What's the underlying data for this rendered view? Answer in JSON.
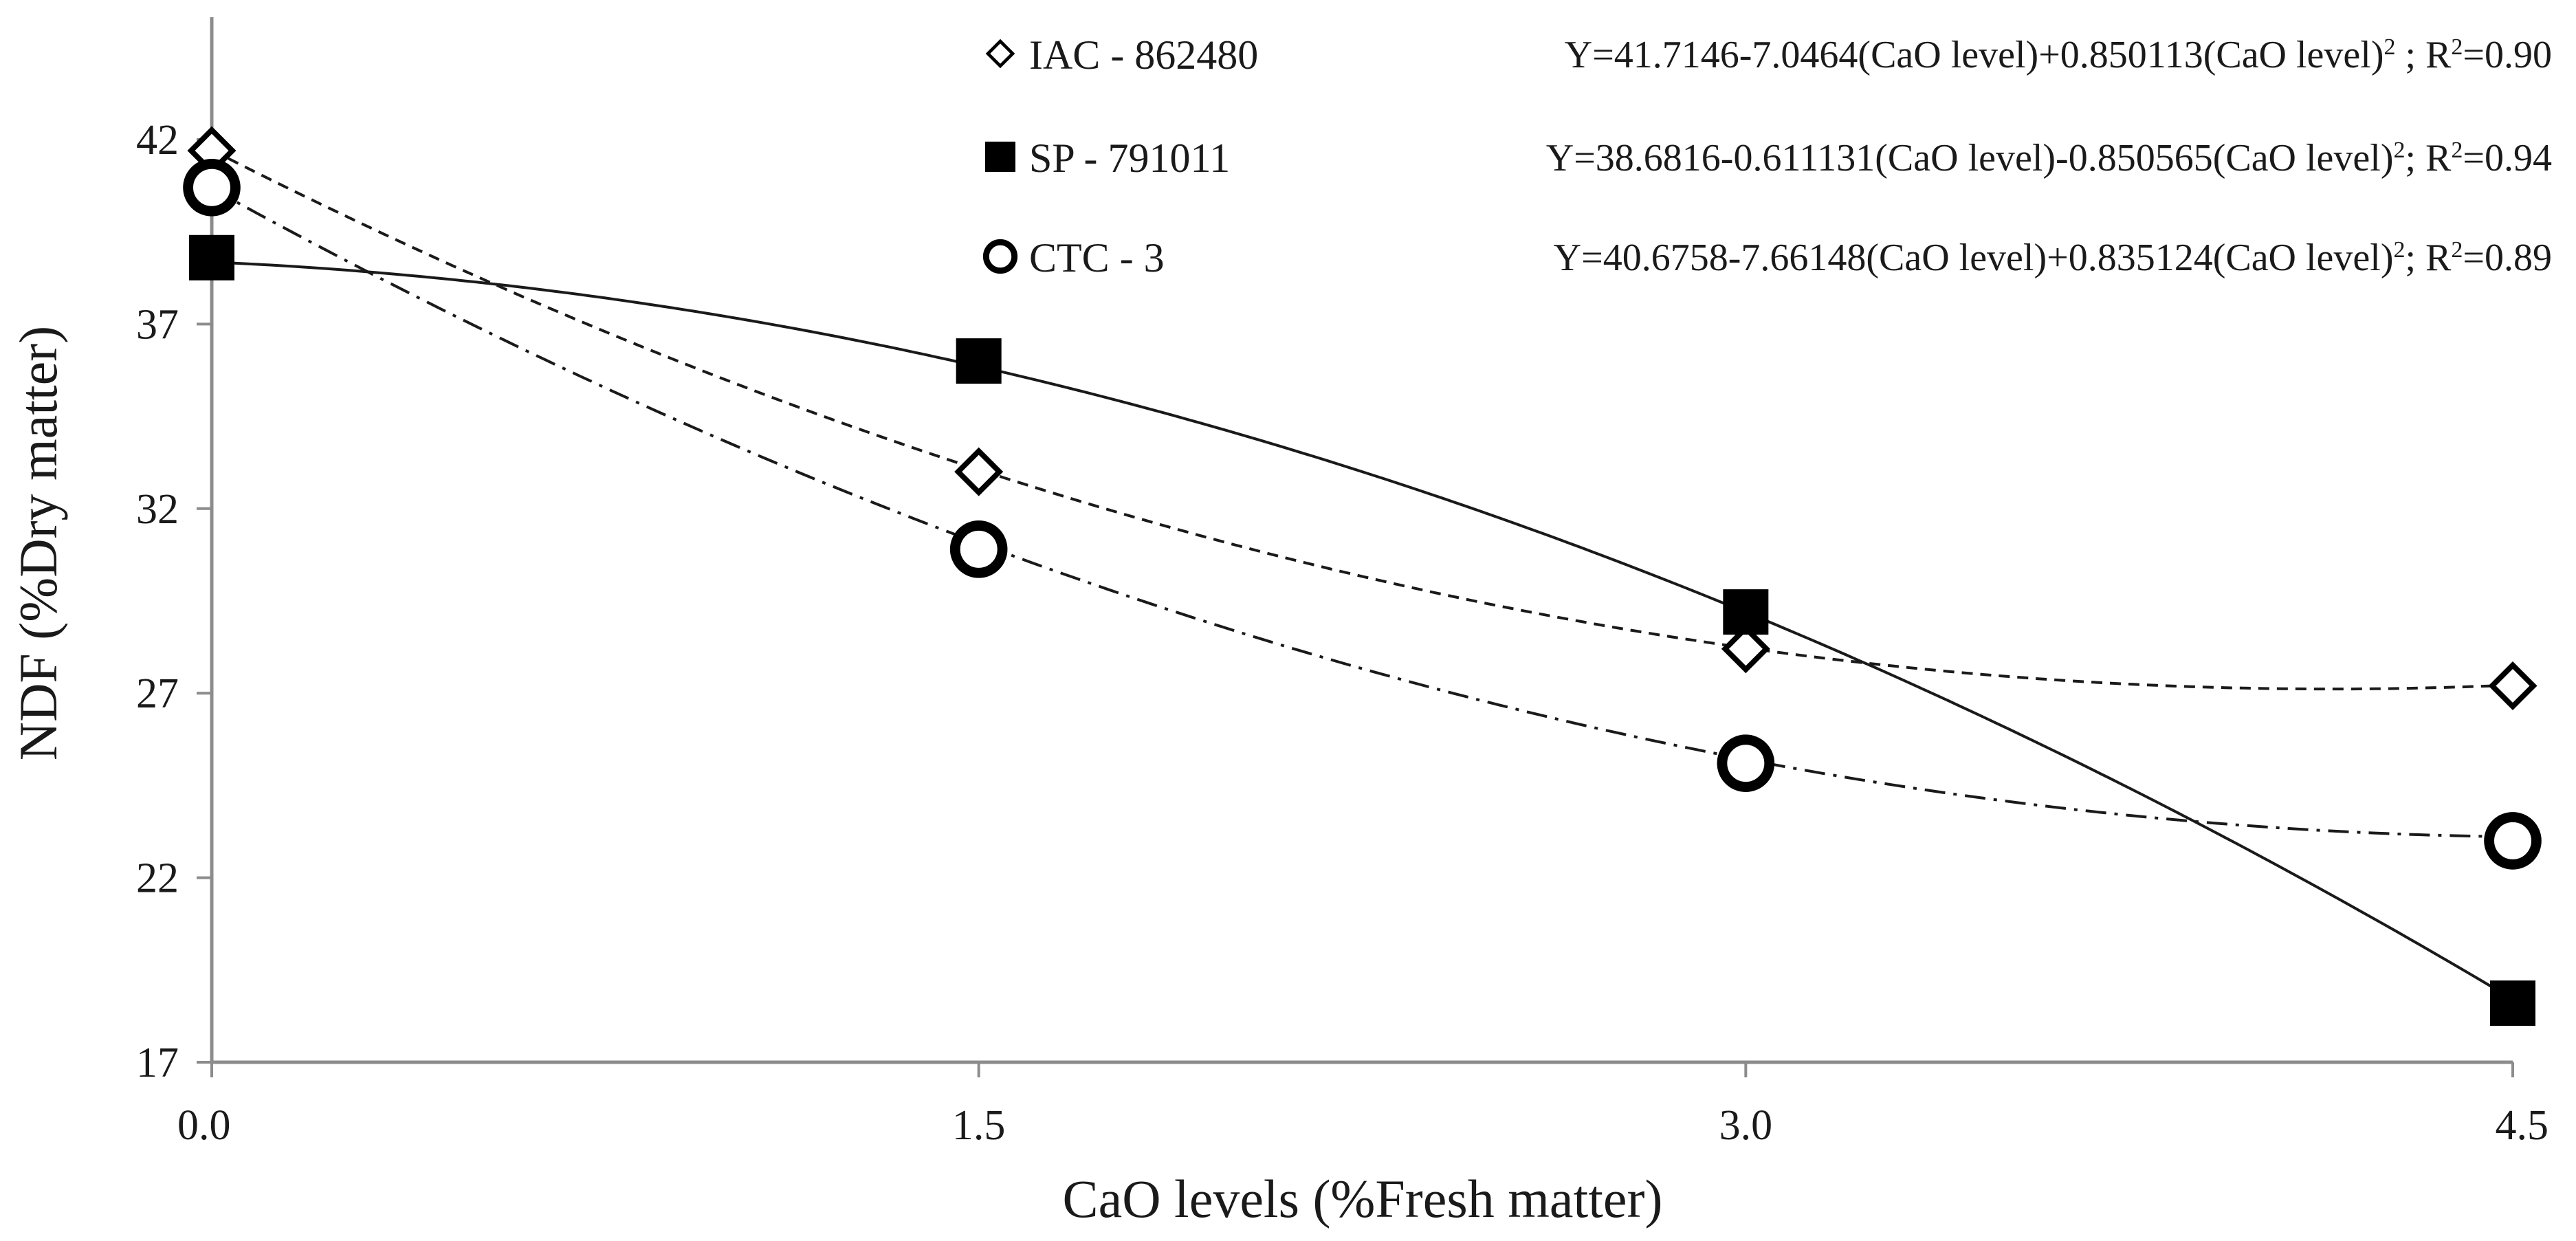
{
  "chart_data": {
    "type": "scatter",
    "title": "",
    "xlabel": "CaO levels (%Fresh matter)",
    "ylabel": "NDF (%Dry matter)",
    "xlim": [
      0,
      4.5
    ],
    "ylim": [
      17,
      45
    ],
    "x_ticks": [
      0,
      1.5,
      3.0,
      4.5
    ],
    "x_tick_labels": [
      "0.0",
      "1.5",
      "3.0",
      "4.5"
    ],
    "y_ticks": [
      17,
      22,
      27,
      32,
      37,
      42
    ],
    "y_tick_labels": [
      "17",
      "22",
      "27",
      "32",
      "37",
      "42"
    ],
    "grid": false,
    "legend_position": "top-right",
    "series": [
      {
        "name": "IAC - 862480",
        "marker": "diamond-open",
        "line_style": "dashed",
        "x": [
          0,
          1.5,
          3.0,
          4.5
        ],
        "values": [
          41.7,
          33.0,
          28.2,
          27.2
        ],
        "fit": {
          "a": 41.7146,
          "b": -7.0464,
          "c": 0.850113
        },
        "equation": {
          "main": "Y=41.7146-7.0464(CaO level)+0.850113(CaO level)",
          "sup": "2",
          "sep": " ; R",
          "r2_sup": "2",
          "r2": "=0.90"
        }
      },
      {
        "name": "SP - 791011",
        "marker": "square-filled",
        "line_style": "solid",
        "x": [
          0,
          1.5,
          3.0,
          4.5
        ],
        "values": [
          38.8,
          36.0,
          29.2,
          18.6
        ],
        "fit": {
          "a": 38.6816,
          "b": -0.611131,
          "c": -0.850565
        },
        "equation": {
          "main": "Y=38.6816-0.611131(CaO level)-0.850565(CaO level)",
          "sup": "2",
          "sep": ";  R",
          "r2_sup": "2",
          "r2": "=0.94"
        }
      },
      {
        "name": "CTC - 3",
        "marker": "circle-open",
        "line_style": "dash-dot",
        "x": [
          0,
          1.5,
          3.0,
          4.5
        ],
        "values": [
          40.7,
          30.9,
          25.1,
          23.0
        ],
        "fit": {
          "a": 40.6758,
          "b": -7.66148,
          "c": 0.835124
        },
        "equation": {
          "main": "Y=40.6758-7.66148(CaO level)+0.835124(CaO level)",
          "sup": "2",
          "sep": "; R",
          "r2_sup": "2",
          "r2": "=0.89"
        }
      }
    ]
  }
}
